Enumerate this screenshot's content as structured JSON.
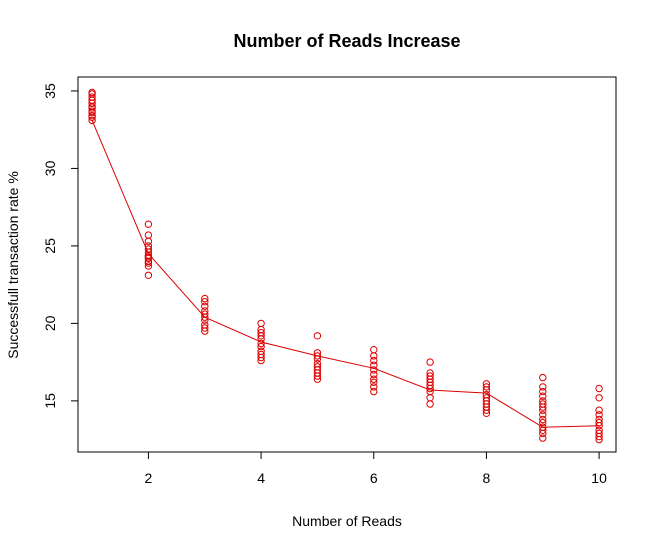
{
  "chart_data": {
    "type": "scatter",
    "title": "Number of Reads Increase",
    "xlabel": "Number of Reads",
    "ylabel": "Successfull transaction rate %",
    "xlim": [
      0.75,
      10.3
    ],
    "ylim": [
      11.7,
      35.9
    ],
    "x_ticks": [
      2,
      4,
      6,
      8,
      10
    ],
    "y_ticks": [
      15,
      20,
      25,
      30,
      35
    ],
    "grid": false,
    "point_color": "#dd0000",
    "line_color": "#dd0000",
    "series": [
      {
        "points": [
          {
            "x": 1,
            "values": [
              34.9,
              34.8,
              34.6,
              34.4,
              34.2,
              34.0,
              33.9,
              33.7,
              33.6,
              33.4,
              33.3,
              33.1
            ]
          },
          {
            "x": 2,
            "values": [
              26.4,
              25.7,
              25.3,
              25.0,
              24.8,
              24.6,
              24.4,
              24.3,
              24.2,
              24.0,
              23.9,
              23.7,
              23.1
            ]
          },
          {
            "x": 3,
            "values": [
              21.6,
              21.4,
              21.1,
              20.8,
              20.6,
              20.4,
              20.2,
              19.9,
              19.7,
              19.5
            ]
          },
          {
            "x": 4,
            "values": [
              20.0,
              19.6,
              19.4,
              19.2,
              19.0,
              18.7,
              18.5,
              18.2,
              18.0,
              17.8,
              17.6
            ]
          },
          {
            "x": 5,
            "values": [
              19.2,
              18.1,
              17.9,
              17.7,
              17.4,
              17.2,
              17.0,
              16.8,
              16.6,
              16.4
            ]
          },
          {
            "x": 6,
            "values": [
              18.3,
              17.9,
              17.6,
              17.3,
              17.0,
              16.7,
              16.4,
              16.2,
              15.9,
              15.6
            ]
          },
          {
            "x": 7,
            "values": [
              17.5,
              16.8,
              16.6,
              16.4,
              16.2,
              16.0,
              15.8,
              15.6,
              15.2,
              14.8
            ]
          },
          {
            "x": 8,
            "values": [
              16.1,
              15.9,
              15.7,
              15.4,
              15.2,
              15.0,
              14.8,
              14.6,
              14.4,
              14.2
            ]
          },
          {
            "x": 9,
            "values": [
              16.5,
              15.9,
              15.6,
              15.3,
              15.0,
              14.8,
              14.6,
              14.4,
              14.1,
              13.8,
              13.6,
              13.3,
              13.1,
              12.9,
              12.6
            ]
          },
          {
            "x": 10,
            "values": [
              15.8,
              15.2,
              14.4,
              14.1,
              13.8,
              13.6,
              13.4,
              13.1,
              12.9,
              12.7,
              12.5
            ]
          }
        ],
        "mean_line": [
          {
            "x": 1,
            "y": 33.1
          },
          {
            "x": 2,
            "y": 24.5
          },
          {
            "x": 3,
            "y": 20.4
          },
          {
            "x": 4,
            "y": 18.8
          },
          {
            "x": 5,
            "y": 17.9
          },
          {
            "x": 6,
            "y": 17.1
          },
          {
            "x": 7,
            "y": 15.7
          },
          {
            "x": 8,
            "y": 15.5
          },
          {
            "x": 9,
            "y": 13.3
          },
          {
            "x": 10,
            "y": 13.4
          }
        ]
      }
    ]
  }
}
